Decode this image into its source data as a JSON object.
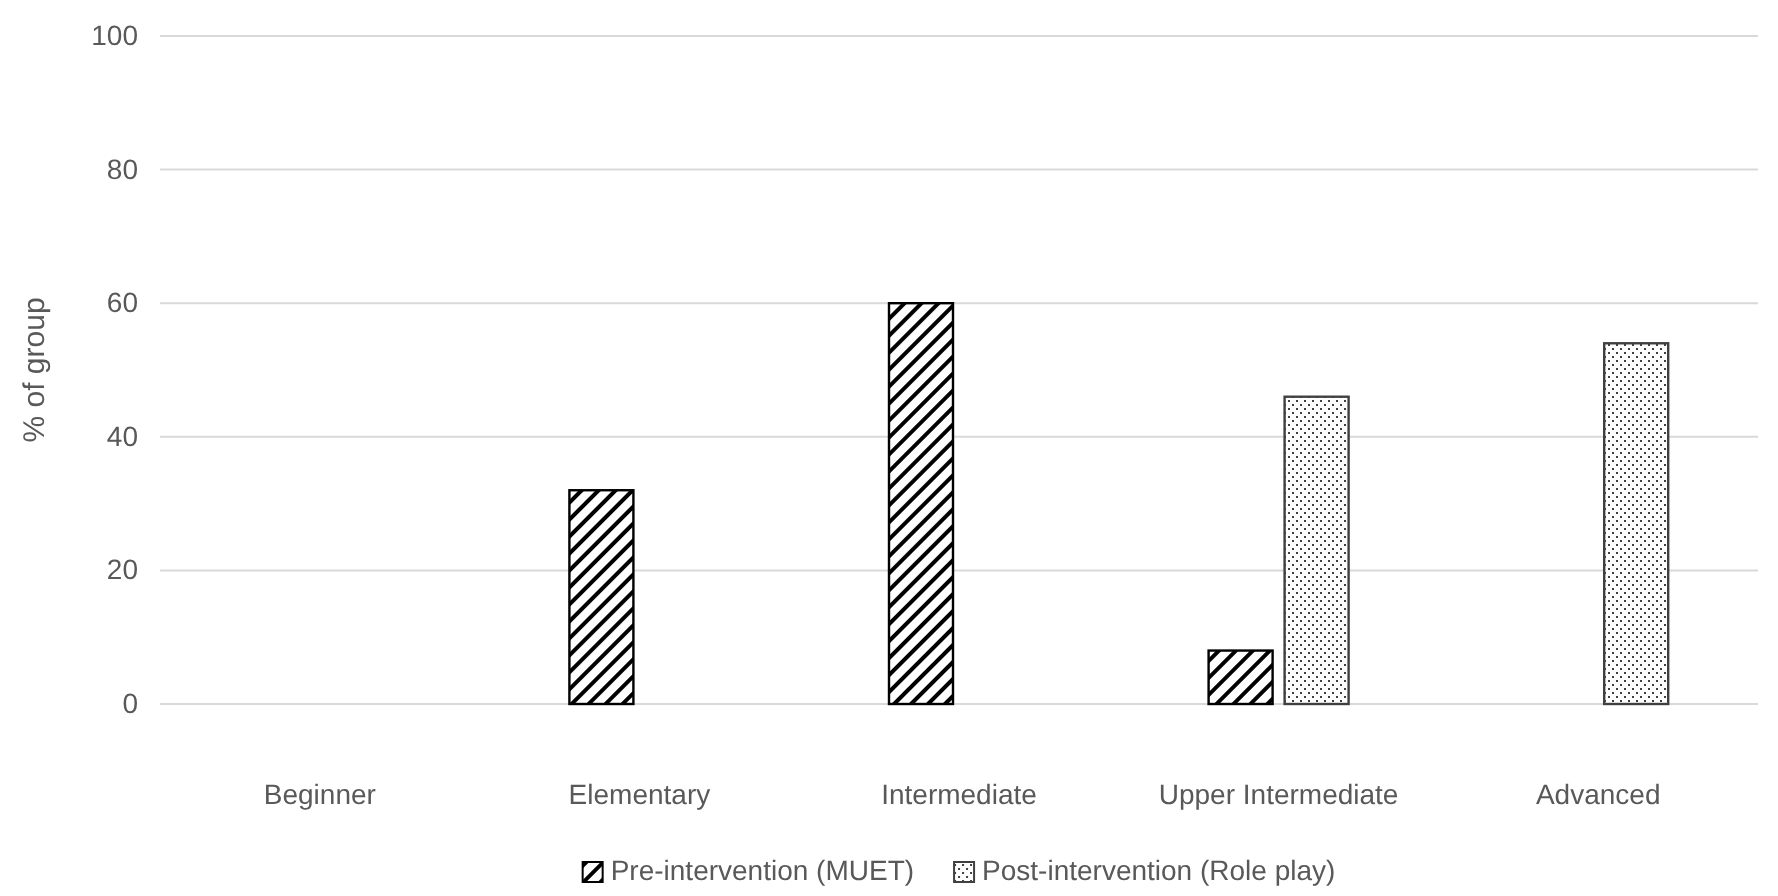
{
  "chart_data": {
    "type": "bar",
    "ylabel": "% of group",
    "categories": [
      "Beginner",
      "Elementary",
      "Intermediate",
      "Upper Intermediate",
      "Advanced"
    ],
    "series": [
      {
        "name": "Pre-intervention (MUET)",
        "color": "#000000",
        "values": [
          0,
          32,
          60,
          8,
          0
        ]
      },
      {
        "name": "Post-intervention (Role play)",
        "color": "#404040",
        "values": [
          0,
          0,
          0,
          46,
          54
        ]
      }
    ],
    "ylim": [
      0,
      100
    ],
    "yticks": [
      0,
      20,
      40,
      60,
      80,
      100
    ],
    "grid": "y",
    "legend": "bottom"
  }
}
